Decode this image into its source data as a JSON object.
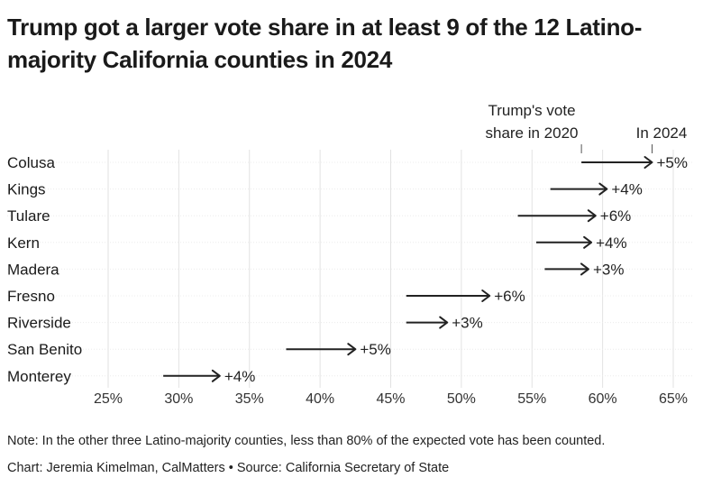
{
  "title": "Trump got a larger vote share in at least 9 of the 12 Latino-majority California counties in 2024",
  "note": "Note: In the other three Latino-majority counties, less than 80% of the expected vote has been counted.",
  "credit": "Chart: Jeremia Kimelman, CalMatters • Source: California Secretary of State",
  "chart_data": {
    "type": "arrow-dot",
    "xlim": [
      24,
      66
    ],
    "x_ticks": [
      25,
      30,
      35,
      40,
      45,
      50,
      55,
      60,
      65
    ],
    "x_tick_labels": [
      "25%",
      "30%",
      "35%",
      "40%",
      "45%",
      "50%",
      "55%",
      "60%",
      "65%"
    ],
    "grid": true,
    "legend": {
      "start_label": "Trump's vote share in 2020",
      "end_label": "In 2024"
    },
    "rows": [
      {
        "county": "Colusa",
        "y2020": 58.5,
        "y2024": 63.5,
        "label": "+5%"
      },
      {
        "county": "Kings",
        "y2020": 56.3,
        "y2024": 60.3,
        "label": "+4%"
      },
      {
        "county": "Tulare",
        "y2020": 54.0,
        "y2024": 59.5,
        "label": "+6%"
      },
      {
        "county": "Kern",
        "y2020": 55.3,
        "y2024": 59.2,
        "label": "+4%"
      },
      {
        "county": "Madera",
        "y2020": 55.9,
        "y2024": 59.0,
        "label": "+3%"
      },
      {
        "county": "Fresno",
        "y2020": 46.1,
        "y2024": 52.0,
        "label": "+6%"
      },
      {
        "county": "Riverside",
        "y2020": 46.1,
        "y2024": 49.0,
        "label": "+3%"
      },
      {
        "county": "San Benito",
        "y2020": 37.6,
        "y2024": 42.5,
        "label": "+5%"
      },
      {
        "county": "Monterey",
        "y2020": 28.9,
        "y2024": 32.9,
        "label": "+4%"
      }
    ],
    "colors": {
      "arrow": "#222222",
      "grid": "#e2e2e2",
      "row_rule": "#ececec"
    }
  }
}
